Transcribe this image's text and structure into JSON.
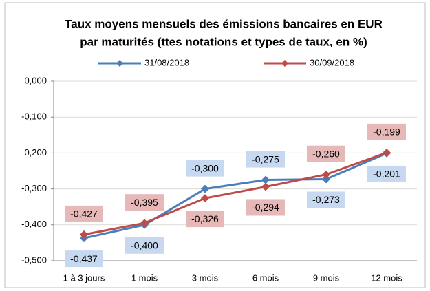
{
  "chart_data": {
    "type": "line",
    "title": [
      "Taux moyens mensuels des émissions bancaires en EUR",
      "par maturités (ttes notations et types de taux, en %)"
    ],
    "categories": [
      "1 à 3 jours",
      "1 mois",
      "3 mois",
      "6 mois",
      "9 mois",
      "12 mois"
    ],
    "series": [
      {
        "name": "31/08/2018",
        "color": "#4a7ebb",
        "label_color": "#c6d9f0",
        "values": [
          -0.437,
          -0.4,
          -0.3,
          -0.275,
          -0.273,
          -0.201
        ],
        "value_labels": [
          "-0,437",
          "-0,400",
          "-0,300",
          "-0,275",
          "-0,273",
          "-0,201"
        ]
      },
      {
        "name": "30/09/2018",
        "color": "#be4b48",
        "label_color": "#e6b9b8",
        "values": [
          -0.427,
          -0.395,
          -0.326,
          -0.294,
          -0.26,
          -0.199
        ],
        "value_labels": [
          "-0,427",
          "-0,395",
          "-0,326",
          "-0,294",
          "-0,260",
          "-0,199"
        ]
      }
    ],
    "ylim": [
      -0.5,
      0
    ],
    "yticks": [
      {
        "value": 0,
        "label": "0,000"
      },
      {
        "value": -0.1,
        "label": "-0,100"
      },
      {
        "value": -0.2,
        "label": "-0,200"
      },
      {
        "value": -0.3,
        "label": "-0,300"
      },
      {
        "value": -0.4,
        "label": "-0,400"
      },
      {
        "value": -0.5,
        "label": "-0,500"
      }
    ],
    "grid": true,
    "legend": "top"
  }
}
